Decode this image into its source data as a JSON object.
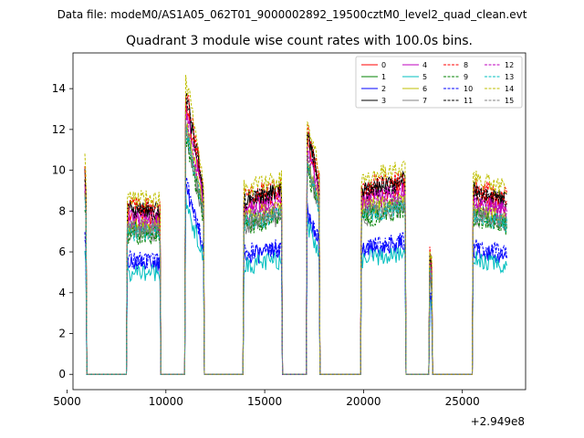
{
  "chart_data": {
    "type": "line",
    "suptitle": "Data file: modeM0/AS1A05_062T01_9000002892_19500cztM0_level2_quad_clean.evt",
    "title": "Quadrant 3 module wise count rates with 100.0s bins.",
    "xlabel": "",
    "ylabel": "",
    "x_offset_label": "+2.949e8",
    "xlim": [
      5300,
      28200
    ],
    "ylim": [
      -0.75,
      15.75
    ],
    "xticks": [
      5000,
      10000,
      15000,
      20000,
      25000
    ],
    "yticks": [
      0,
      2,
      4,
      6,
      8,
      10,
      12,
      14
    ],
    "legend_position": "top-right",
    "legend_columns": 4,
    "segments": [
      {
        "start": 5900,
        "end": 5950,
        "start_scale": 1.05,
        "end_scale": 0.95
      },
      {
        "start": 8050,
        "end": 9700,
        "start_scale": 0.85,
        "end_scale": 0.85
      },
      {
        "start": 11000,
        "end": 11900,
        "start_scale": 1.45,
        "end_scale": 0.95
      },
      {
        "start": 13950,
        "end": 15850,
        "start_scale": 0.9,
        "end_scale": 0.95
      },
      {
        "start": 17150,
        "end": 17750,
        "start_scale": 1.25,
        "end_scale": 1.0
      },
      {
        "start": 19900,
        "end": 22100,
        "start_scale": 0.95,
        "end_scale": 1.0
      },
      {
        "start": 23350,
        "end": 23450,
        "start_scale": 0.6,
        "end_scale": 0.55
      },
      {
        "start": 25550,
        "end": 27250,
        "start_scale": 0.95,
        "end_scale": 0.9
      }
    ],
    "series": [
      {
        "name": "0",
        "color": "#ff0000",
        "dash": "solid",
        "level": 9.2
      },
      {
        "name": "1",
        "color": "#008000",
        "dash": "solid",
        "level": 8.3
      },
      {
        "name": "2",
        "color": "#0000ff",
        "dash": "solid",
        "level": 6.4
      },
      {
        "name": "3",
        "color": "#000000",
        "dash": "solid",
        "level": 9.5
      },
      {
        "name": "4",
        "color": "#bf00bf",
        "dash": "solid",
        "level": 9.0
      },
      {
        "name": "5",
        "color": "#00bfbf",
        "dash": "solid",
        "level": 5.9
      },
      {
        "name": "6",
        "color": "#bfbf00",
        "dash": "solid",
        "level": 8.6
      },
      {
        "name": "7",
        "color": "#808080",
        "dash": "solid",
        "level": 8.1
      },
      {
        "name": "8",
        "color": "#ff0000",
        "dash": "dashed",
        "level": 9.7
      },
      {
        "name": "9",
        "color": "#008000",
        "dash": "dashed",
        "level": 8.0
      },
      {
        "name": "10",
        "color": "#0000ff",
        "dash": "dashed",
        "level": 6.6
      },
      {
        "name": "11",
        "color": "#000000",
        "dash": "dashed",
        "level": 9.4
      },
      {
        "name": "12",
        "color": "#bf00bf",
        "dash": "dashed",
        "level": 8.8
      },
      {
        "name": "13",
        "color": "#00bfbf",
        "dash": "dashed",
        "level": 8.2
      },
      {
        "name": "14",
        "color": "#bfbf00",
        "dash": "dashed",
        "level": 10.1
      },
      {
        "name": "15",
        "color": "#808080",
        "dash": "dashed",
        "level": 8.4
      }
    ]
  }
}
